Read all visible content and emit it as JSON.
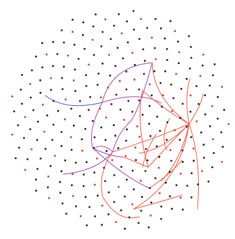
{
  "diagram": {
    "type": "radial-node-link-network",
    "node_color": "#1c1c2e",
    "node_accent_color": "#d33a2a",
    "edge_groups": [
      {
        "group": "blue",
        "color": "#3b58c9"
      },
      {
        "group": "purple",
        "color": "#9a4aa6"
      },
      {
        "group": "red",
        "color": "#f05a45"
      }
    ]
  }
}
